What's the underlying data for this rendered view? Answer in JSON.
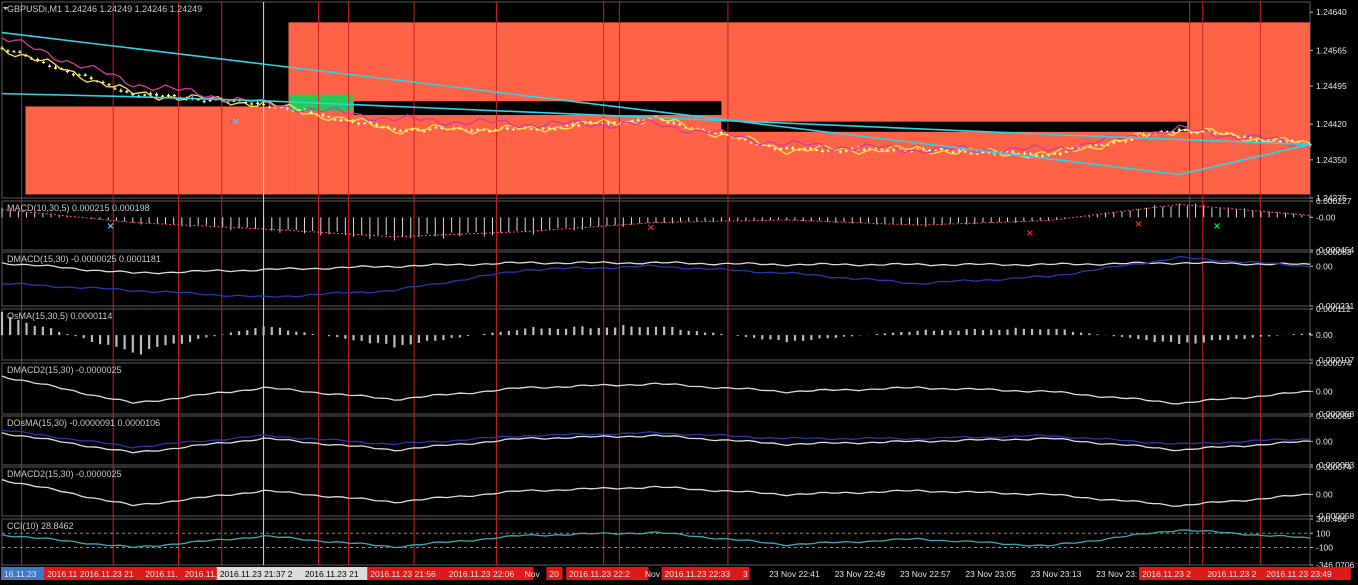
{
  "colors": {
    "background": "#000000",
    "zone": "#ff6347",
    "zone_green": "#22cc55",
    "grid_red": "#d21e1e",
    "grid_white": "#e0e0e0",
    "cyan": "#2fd2e6",
    "yellow": "#ffe24a",
    "magenta": "#d23c9a",
    "candle": "#ffffc0",
    "navy": "#2838a8",
    "white_line": "#dcdcdc",
    "teal": "#3ca8b4",
    "marker_red": "#ff2020",
    "marker_green": "#22dd44",
    "marker_blue": "#66b8ff"
  },
  "chart_data": [
    {
      "id": "main",
      "type": "line",
      "title": "GBPUSDi,M1  1.24246 1.24249 1.24246 1.24249",
      "ylim": [
        1.24275,
        1.2466
      ],
      "yticks": [
        "1.24640",
        "1.24565",
        "1.24495",
        "1.24420",
        "1.24350",
        "1.24275"
      ],
      "ytick_values": [
        1.2464,
        1.24565,
        1.24495,
        1.2442,
        1.2435,
        1.24275
      ],
      "x": [
        0,
        10,
        20,
        30,
        40,
        50,
        60,
        70,
        80,
        90,
        100
      ],
      "series": [
        {
          "role": "ma_fast",
          "values": [
            1.2457,
            1.2448,
            1.2446,
            1.2441,
            1.2441,
            1.2443,
            1.2437,
            1.2437,
            1.2436,
            1.2441,
            1.2438
          ]
        },
        {
          "role": "ma_slow",
          "values": [
            1.2459,
            1.245,
            1.2446,
            1.2443,
            1.2442,
            1.2442,
            1.2438,
            1.2437,
            1.2437,
            1.2441,
            1.2438
          ]
        },
        {
          "role": "trendline_upper",
          "values": [
            1.246,
            1.24569,
            1.24538,
            1.24507,
            1.24476,
            1.24445,
            1.24414,
            1.24383,
            1.24352,
            1.24321,
            1.2438
          ]
        },
        {
          "role": "trendline_lower",
          "values": [
            1.2448,
            1.24474,
            1.24466,
            1.24455,
            1.24444,
            1.24433,
            1.24422,
            1.24411,
            1.244,
            1.2439,
            1.2438
          ]
        }
      ]
    },
    {
      "id": "macd",
      "type": "bar",
      "title": "MACD(10,30,5) 0.000215 0.000198",
      "ylim": [
        -0.000454,
        0.000227
      ],
      "yticks": [
        "0.000227",
        "-0.00",
        "-0.000454"
      ],
      "ytick_values": [
        0.000227,
        0.0,
        -0.000454
      ],
      "x": [
        0,
        10,
        20,
        30,
        40,
        50,
        60,
        70,
        80,
        90,
        100
      ],
      "values": [
        0.00012,
        -8e-05,
        -0.00018,
        -0.0003,
        -0.00022,
        -8e-05,
        -4e-05,
        -0.00012,
        -5e-05,
        0.0002,
        3e-05
      ]
    },
    {
      "id": "dmacd",
      "type": "line",
      "title": "DMACD(15,30) -0.0000025 0.0001181",
      "ylim": [
        -0.000231,
        8.3e-05
      ],
      "yticks": [
        "0.000083",
        "0.00",
        "-0.000231"
      ],
      "ytick_values": [
        8.3e-05,
        0.0,
        -0.000231
      ],
      "x": [
        0,
        10,
        20,
        30,
        40,
        50,
        60,
        70,
        80,
        90,
        100
      ],
      "series": [
        {
          "role": "white",
          "values": [
            2e-05,
            -4e-05,
            -2e-05,
            0.0,
            2e-05,
            2e-05,
            1e-05,
            1e-05,
            1e-05,
            2e-05,
            1e-05
          ]
        },
        {
          "role": "navy",
          "values": [
            -0.0001,
            -0.00014,
            -0.00018,
            -0.00014,
            -2e-05,
            0.0,
            -4e-05,
            -0.0001,
            -6e-05,
            5e-05,
            0.0
          ]
        }
      ]
    },
    {
      "id": "osma",
      "type": "bar",
      "title": "OsMA(15,30,5) 0.0000114",
      "ylim": [
        -0.000107,
        0.000112
      ],
      "yticks": [
        "0.000112",
        "0.00",
        "-0.000107"
      ],
      "ytick_values": [
        0.000112,
        0.0,
        -0.000107
      ],
      "x": [
        0,
        10,
        20,
        30,
        40,
        50,
        60,
        70,
        80,
        90,
        100
      ],
      "values": [
        9e-05,
        -8e-05,
        4e-05,
        -5e-05,
        3e-05,
        4e-05,
        -3e-05,
        2e-05,
        3e-05,
        -4e-05,
        1e-05
      ]
    },
    {
      "id": "dmacd2",
      "type": "line",
      "title": "DMACD2(15,30) -0.0000025",
      "ylim": [
        -5.8e-05,
        7.4e-05
      ],
      "yticks": [
        "0.000074",
        "0.00",
        "-0.000058"
      ],
      "ytick_values": [
        7.4e-05,
        0.0,
        -5.8e-05
      ],
      "x": [
        0,
        10,
        20,
        30,
        40,
        50,
        60,
        70,
        80,
        90,
        100
      ],
      "series": [
        {
          "role": "white",
          "values": [
            4e-05,
            -3e-05,
            1e-05,
            -2e-05,
            1e-05,
            2e-05,
            0.0,
            1e-05,
            0.0,
            -3e-05,
            0.0
          ]
        }
      ]
    },
    {
      "id": "dosma",
      "type": "line",
      "title": "DOsMA(15,30) -0.0000091 0.0000106",
      "ylim": [
        -8.3e-05,
        8.9e-05
      ],
      "yticks": [
        "0.000089",
        "0.00",
        "-0.000083"
      ],
      "ytick_values": [
        8.9e-05,
        0.0,
        -8.3e-05
      ],
      "x": [
        0,
        10,
        20,
        30,
        40,
        50,
        60,
        70,
        80,
        90,
        100
      ],
      "series": [
        {
          "role": "white",
          "values": [
            3e-05,
            -4e-05,
            1e-05,
            -3e-05,
            1e-05,
            2e-05,
            -1e-05,
            0.0,
            1e-05,
            -3e-05,
            0.0
          ]
        },
        {
          "role": "navy",
          "values": [
            4e-05,
            -2e-05,
            2e-05,
            -1e-05,
            2e-05,
            3e-05,
            1e-05,
            1e-05,
            2e-05,
            -1e-05,
            1e-05
          ]
        }
      ]
    },
    {
      "id": "dmacd2b",
      "type": "line",
      "title": "DMACD2(15,30) -0.0000025",
      "ylim": [
        -5.8e-05,
        7.4e-05
      ],
      "yticks": [
        "0.000074",
        "0.00",
        "-0.000058"
      ],
      "ytick_values": [
        7.4e-05,
        0.0,
        -5.8e-05
      ],
      "x": [
        0,
        10,
        20,
        30,
        40,
        50,
        60,
        70,
        80,
        90,
        100
      ],
      "series": [
        {
          "role": "white",
          "values": [
            4e-05,
            -3e-05,
            1e-05,
            -2e-05,
            1e-05,
            2e-05,
            0.0,
            1e-05,
            0.0,
            -3e-05,
            0.0
          ]
        }
      ]
    },
    {
      "id": "cci",
      "type": "line",
      "title": "CCI(10) 28.8462",
      "ylim": [
        -346.0706,
        300.486
      ],
      "yticks": [
        "300.486",
        "100",
        "-100",
        "-346.0706"
      ],
      "ytick_values": [
        300.486,
        100,
        -100,
        -346.0706
      ],
      "x": [
        0,
        10,
        20,
        30,
        40,
        50,
        60,
        70,
        80,
        90,
        100
      ],
      "series": [
        {
          "role": "teal",
          "values": [
            80,
            -100,
            60,
            -90,
            70,
            110,
            -60,
            20,
            -80,
            150,
            29
          ]
        }
      ]
    }
  ],
  "xaxis": {
    "labels": [
      {
        "text": "16.11.23",
        "pos": 0.0,
        "hl": "blue"
      },
      {
        "text": "2016.11.",
        "pos": 3.3,
        "hl": "red"
      },
      {
        "text": "2016.11.23 21",
        "pos": 5.8,
        "hl": "red"
      },
      {
        "text": "2016.11.",
        "pos": 10.8,
        "hl": "red"
      },
      {
        "text": "2016.11.",
        "pos": 13.8,
        "hl": "red"
      },
      {
        "text": "2016.11.23 21:37 2",
        "pos": 16.5,
        "hl": "white"
      },
      {
        "text": "2016.11.23 21",
        "pos": 23.0,
        "hl": "white"
      },
      {
        "text": "2016.11.23 21:56",
        "pos": 28.0,
        "hl": "red"
      },
      {
        "text": "2016.11.23 22:06",
        "pos": 34.0,
        "hl": "red"
      },
      {
        "text": "Nov",
        "pos": 39.8,
        "hl": "none"
      },
      {
        "text": "20",
        "pos": 41.7,
        "hl": "red"
      },
      {
        "text": "2016.11.23 22:2",
        "pos": 43.2,
        "hl": "red"
      },
      {
        "text": "Nov",
        "pos": 49.0,
        "hl": "none"
      },
      {
        "text": "2016.11.23 22:33",
        "pos": 50.5,
        "hl": "red"
      },
      {
        "text": "3",
        "pos": 56.5,
        "hl": "none"
      },
      {
        "text": "23 Nov 22:41",
        "pos": 58.5,
        "hl": "none"
      },
      {
        "text": "23 Nov 22:49",
        "pos": 63.5,
        "hl": "none"
      },
      {
        "text": "23 Nov 22:57",
        "pos": 68.5,
        "hl": "none"
      },
      {
        "text": "23 Nov 23:05",
        "pos": 73.5,
        "hl": "none"
      },
      {
        "text": "23 Nov 23:13",
        "pos": 78.5,
        "hl": "none"
      },
      {
        "text": "23 Nov 23:",
        "pos": 83.5,
        "hl": "none"
      },
      {
        "text": "2016.11.23 2",
        "pos": 87.0,
        "hl": "red"
      },
      {
        "text": "2016.11.23 2",
        "pos": 92.0,
        "hl": "red"
      },
      {
        "text": "2016.11.23 23:49",
        "pos": 96.5,
        "hl": "red"
      }
    ]
  },
  "vlines_red": [
    1.5,
    8.5,
    13.5,
    16.8,
    24.2,
    26.5,
    31.5,
    37.8,
    46.0,
    47.2,
    55.5,
    90.8,
    91.8,
    96.2
  ],
  "vlines_white": [
    20.0
  ],
  "zones": [
    {
      "x0": 1.8,
      "x1": 21.9,
      "y0": 1.24455,
      "y1": 1.24282,
      "color": "zone"
    },
    {
      "x0": 21.9,
      "x1": 100,
      "y0": 1.2462,
      "y1": 1.24282,
      "color": "zone"
    },
    {
      "x0": 1.8,
      "x1": 21.9,
      "y0": 1.2462,
      "y1": 1.24455,
      "color": "background"
    },
    {
      "x0": 26.9,
      "x1": 55.0,
      "y0": 1.24465,
      "y1": 1.24438,
      "color": "background"
    },
    {
      "x0": 55.0,
      "x1": 90.6,
      "y0": 1.24425,
      "y1": 1.24405,
      "color": "background"
    },
    {
      "x0": 22.0,
      "x1": 26.8,
      "y0": 1.24478,
      "y1": 1.24445,
      "color": "zone_green"
    }
  ],
  "markers": [
    {
      "panel": "main",
      "x": 17.8,
      "value": 1.24425,
      "color": "marker_blue"
    },
    {
      "panel": "macd",
      "x": 8.2,
      "value": -0.00012,
      "color": "marker_blue"
    },
    {
      "panel": "macd",
      "x": 49.5,
      "value": -0.00014,
      "color": "marker_red"
    },
    {
      "panel": "macd",
      "x": 78.5,
      "value": -0.00022,
      "color": "marker_red"
    },
    {
      "panel": "macd",
      "x": 86.8,
      "value": -9e-05,
      "color": "marker_red"
    },
    {
      "panel": "macd",
      "x": 92.8,
      "value": -0.00012,
      "color": "marker_green"
    }
  ]
}
